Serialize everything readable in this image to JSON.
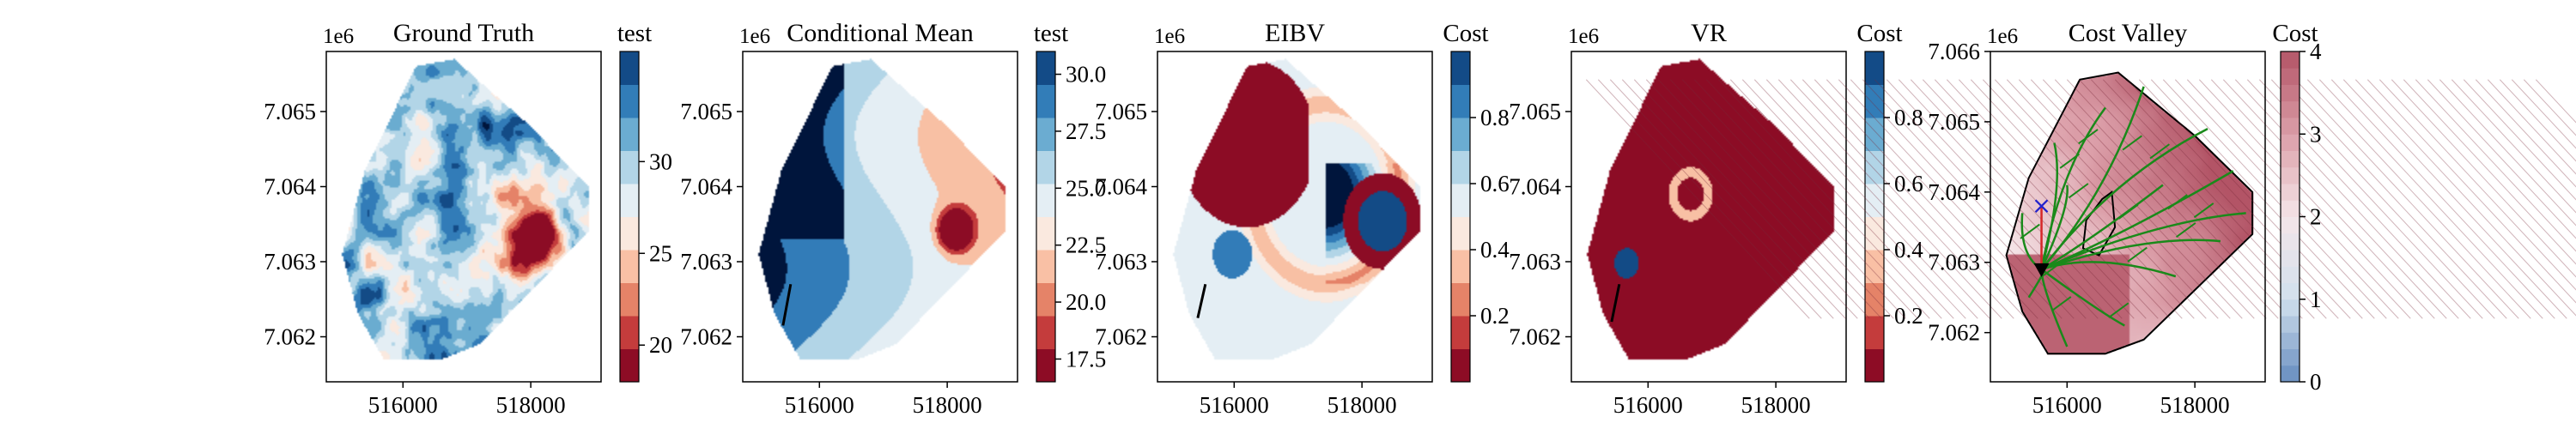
{
  "figure": {
    "panel_count": 5,
    "shared_axes": {
      "x_ticks": [
        516000,
        518000
      ],
      "x_tick_labels": [
        "516000",
        "518000"
      ],
      "y_offset_label": "1e6"
    }
  },
  "chart_data": [
    {
      "type": "heatmap",
      "title": "Ground Truth",
      "xlim": [
        514800,
        519100
      ],
      "ylim": [
        7.0614,
        7.0658
      ],
      "y_ticks": [
        7.062,
        7.063,
        7.064,
        7.065
      ],
      "y_tick_labels": [
        "7.062",
        "7.063",
        "7.064",
        "7.065"
      ],
      "y_offset": "1e6",
      "colorbar": {
        "label": "test",
        "vmin": 18,
        "vmax": 36,
        "ticks": [
          20,
          25,
          30
        ],
        "tick_labels": [
          "20",
          "25",
          "30"
        ],
        "levels": 10
      },
      "cmap": [
        "#67001f",
        "#b2182b",
        "#d6604d",
        "#f4a582",
        "#fddbc7",
        "#f7f7f7",
        "#d1e5f0",
        "#92c5de",
        "#4393c3",
        "#2166ac",
        "#053061"
      ]
    },
    {
      "type": "heatmap",
      "title": "Conditional Mean",
      "xlim": [
        514800,
        519100
      ],
      "ylim": [
        7.0614,
        7.0658
      ],
      "y_ticks": [
        7.062,
        7.063,
        7.064,
        7.065
      ],
      "y_tick_labels": [
        "7.062",
        "7.063",
        "7.064",
        "7.065"
      ],
      "y_offset": "1e6",
      "colorbar": {
        "label": "test",
        "vmin": 16.5,
        "vmax": 31,
        "ticks": [
          17.5,
          20.0,
          22.5,
          25.0,
          27.5,
          30.0
        ],
        "tick_labels": [
          "17.5",
          "20.0",
          "22.5",
          "25.0",
          "27.5",
          "30.0"
        ],
        "levels": 10
      },
      "path": [
        [
          515430,
          7.06215
        ],
        [
          515550,
          7.0627
        ]
      ]
    },
    {
      "type": "heatmap",
      "title": "EIBV",
      "xlim": [
        514800,
        519100
      ],
      "ylim": [
        7.0614,
        7.0658
      ],
      "y_ticks": [
        7.062,
        7.063,
        7.064,
        7.065
      ],
      "y_tick_labels": [
        "7.062",
        "7.063",
        "7.064",
        "7.065"
      ],
      "y_offset": "1e6",
      "colorbar": {
        "label": "Cost",
        "vmin": 0,
        "vmax": 1,
        "ticks": [
          0.2,
          0.4,
          0.6,
          0.8
        ],
        "tick_labels": [
          "0.2",
          "0.4",
          "0.6",
          "0.8"
        ],
        "levels": 10
      },
      "path": [
        [
          515430,
          7.06225
        ],
        [
          515550,
          7.0627
        ]
      ]
    },
    {
      "type": "heatmap",
      "title": "VR",
      "xlim": [
        514800,
        519100
      ],
      "ylim": [
        7.0614,
        7.0658
      ],
      "y_ticks": [
        7.062,
        7.063,
        7.064,
        7.065
      ],
      "y_tick_labels": [
        "7.062",
        "7.063",
        "7.064",
        "7.065"
      ],
      "y_offset": "1e6",
      "colorbar": {
        "label": "Cost",
        "vmin": 0,
        "vmax": 1,
        "ticks": [
          0.2,
          0.4,
          0.6,
          0.8
        ],
        "tick_labels": [
          "0.2",
          "0.4",
          "0.6",
          "0.8"
        ],
        "levels": 10
      },
      "path": [
        [
          515430,
          7.0622
        ],
        [
          515550,
          7.0627
        ]
      ]
    },
    {
      "type": "heatmap",
      "title": "Cost Valley",
      "xlim": [
        514800,
        519100
      ],
      "ylim": [
        7.0613,
        7.066
      ],
      "y_ticks": [
        7.062,
        7.063,
        7.064,
        7.065,
        7.066
      ],
      "y_tick_labels": [
        "7.062",
        "7.063",
        "7.064",
        "7.065",
        "7.066"
      ],
      "y_offset": "1e6",
      "colorbar": {
        "label": "Cost",
        "vmin": 0,
        "vmax": 4,
        "ticks": [
          0,
          1,
          2,
          3,
          4
        ],
        "tick_labels": [
          "0",
          "1",
          "2",
          "3",
          "4"
        ],
        "levels": 20
      },
      "current_location": [
        515600,
        7.0629
      ],
      "next_waypoint": [
        515600,
        7.0638
      ],
      "tree_color": "#1a8a1a"
    }
  ]
}
